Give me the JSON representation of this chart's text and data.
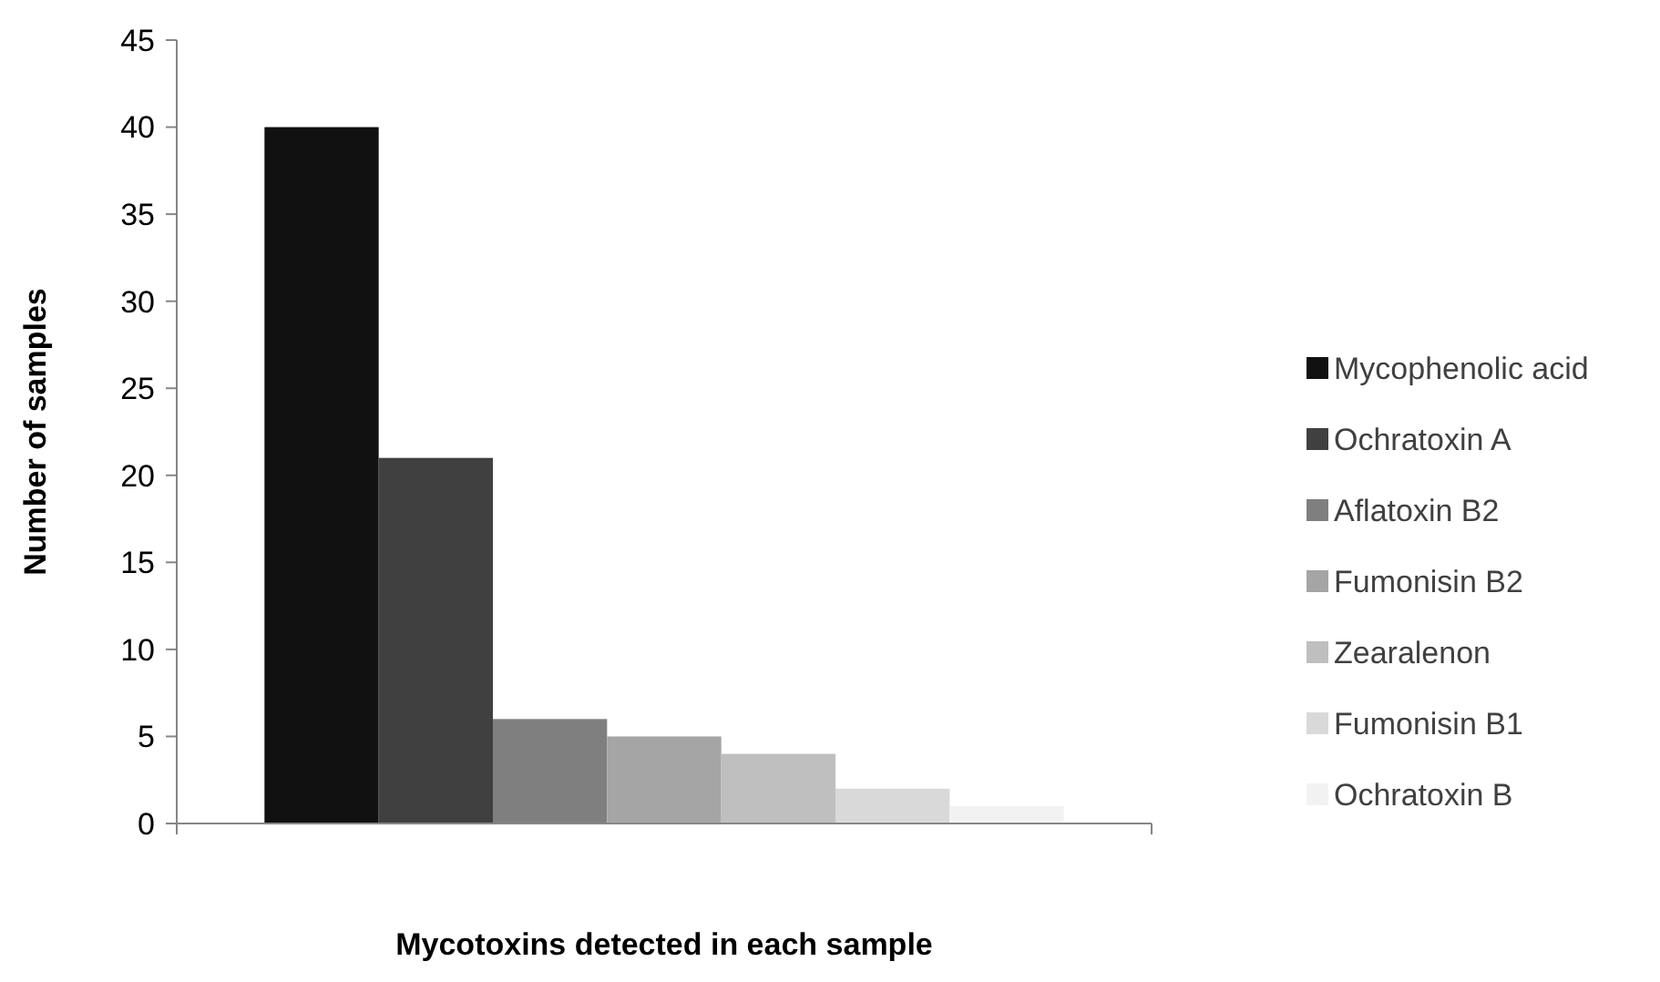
{
  "chart_data": {
    "type": "bar",
    "xlabel": "Mycotoxins detected in each sample",
    "ylabel": "Number of samples",
    "categories": [
      null
    ],
    "series": [
      {
        "name": "Mycophenolic acid",
        "color": "#111111",
        "values": [
          40
        ]
      },
      {
        "name": "Ochratoxin A",
        "color": "#404040",
        "values": [
          21
        ]
      },
      {
        "name": "Aflatoxin B2",
        "color": "#7f7f7f",
        "values": [
          6
        ]
      },
      {
        "name": "Fumonisin B2",
        "color": "#a5a5a5",
        "values": [
          5
        ]
      },
      {
        "name": "Zearalenon",
        "color": "#bfbfbf",
        "values": [
          4
        ]
      },
      {
        "name": "Fumonisin B1",
        "color": "#d9d9d9",
        "values": [
          2
        ]
      },
      {
        "name": "Ochratoxin B",
        "color": "#f2f2f2",
        "values": [
          1
        ]
      }
    ],
    "ylim": [
      0,
      45
    ],
    "yticks": [
      0,
      5,
      10,
      15,
      20,
      25,
      30,
      35,
      40,
      45
    ],
    "grid": false,
    "legend": "right"
  }
}
